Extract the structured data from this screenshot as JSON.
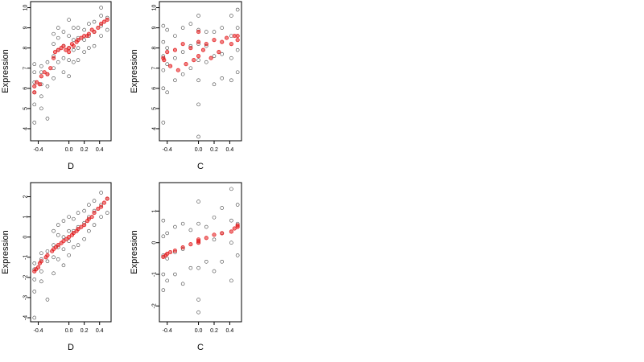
{
  "chart_data": [
    {
      "type": "scatter",
      "panel": "top-left",
      "xlabel": "D",
      "ylabel": "Expression",
      "xticks": [
        -0.4,
        0.0,
        0.2,
        0.4
      ],
      "xtick_labels": [
        "-0.4",
        "0.0",
        "0.2",
        "0.4"
      ],
      "yticks": [
        4,
        5,
        6,
        7,
        8,
        9,
        10
      ],
      "ytick_labels": [
        "4",
        "5",
        "6",
        "7",
        "8",
        "9",
        "10"
      ],
      "xlim": [
        -0.5,
        0.55
      ],
      "ylim": [
        3.4,
        10.3
      ],
      "grid": false,
      "observed": {
        "color": "#000000",
        "x": [
          -0.45,
          -0.45,
          -0.45,
          -0.45,
          -0.45,
          -0.45,
          -0.36,
          -0.36,
          -0.36,
          -0.36,
          -0.36,
          -0.28,
          -0.28,
          -0.28,
          -0.28,
          -0.2,
          -0.2,
          -0.2,
          -0.2,
          -0.2,
          -0.14,
          -0.14,
          -0.14,
          -0.14,
          -0.07,
          -0.07,
          -0.07,
          -0.07,
          0.0,
          0.0,
          0.0,
          0.0,
          0.0,
          0.06,
          0.06,
          0.06,
          0.06,
          0.12,
          0.12,
          0.12,
          0.12,
          0.2,
          0.2,
          0.2,
          0.26,
          0.26,
          0.26,
          0.33,
          0.33,
          0.33,
          0.42,
          0.42,
          0.42,
          0.42,
          0.5,
          0.5
        ],
        "y": [
          5.2,
          5.8,
          6.3,
          6.8,
          7.2,
          4.3,
          5.6,
          6.2,
          6.8,
          7.1,
          5.0,
          6.1,
          6.7,
          7.3,
          4.5,
          7.0,
          7.6,
          8.2,
          8.7,
          6.5,
          7.3,
          7.9,
          8.5,
          9.0,
          6.8,
          7.5,
          8.1,
          8.8,
          6.6,
          7.4,
          8.0,
          8.6,
          9.4,
          7.3,
          7.9,
          8.4,
          9.0,
          7.4,
          8.0,
          8.5,
          9.0,
          7.8,
          8.4,
          8.9,
          8.0,
          8.6,
          9.2,
          8.1,
          8.8,
          9.3,
          8.6,
          9.1,
          9.6,
          10.0,
          8.9,
          9.5
        ]
      },
      "fitted": {
        "color": "#e41a1c",
        "x": [
          -0.45,
          -0.45,
          -0.42,
          -0.38,
          -0.36,
          -0.32,
          -0.28,
          -0.24,
          -0.2,
          -0.18,
          -0.14,
          -0.1,
          -0.07,
          -0.04,
          0.0,
          0.0,
          0.04,
          0.06,
          0.1,
          0.12,
          0.16,
          0.2,
          0.24,
          0.26,
          0.3,
          0.33,
          0.38,
          0.42,
          0.46,
          0.5
        ],
        "y": [
          5.8,
          6.1,
          6.3,
          6.2,
          6.6,
          6.8,
          6.7,
          7.0,
          7.5,
          7.8,
          7.9,
          8.0,
          8.1,
          7.9,
          8.0,
          7.8,
          8.2,
          8.1,
          8.3,
          8.4,
          8.5,
          8.6,
          8.6,
          8.7,
          8.9,
          8.8,
          9.0,
          9.2,
          9.3,
          9.4
        ]
      }
    },
    {
      "type": "scatter",
      "panel": "top-right",
      "xlabel": "C",
      "ylabel": "Expression",
      "xticks": [
        -0.4,
        0.0,
        0.2,
        0.4
      ],
      "xtick_labels": [
        "-0.4",
        "0.0",
        "0.2",
        "0.4"
      ],
      "yticks": [
        4,
        5,
        6,
        7,
        8,
        9,
        10
      ],
      "ytick_labels": [
        "4",
        "5",
        "6",
        "7",
        "8",
        "9",
        "10"
      ],
      "xlim": [
        -0.5,
        0.55
      ],
      "ylim": [
        3.4,
        10.3
      ],
      "grid": false,
      "observed": {
        "color": "#000000",
        "x": [
          -0.45,
          -0.45,
          -0.45,
          -0.45,
          -0.45,
          -0.45,
          -0.4,
          -0.4,
          -0.4,
          -0.4,
          -0.3,
          -0.3,
          -0.3,
          -0.2,
          -0.2,
          -0.2,
          -0.1,
          -0.1,
          -0.1,
          0.0,
          0.0,
          0.0,
          0.0,
          0.0,
          0.0,
          0.0,
          0.1,
          0.1,
          0.1,
          0.2,
          0.2,
          0.2,
          0.3,
          0.3,
          0.3,
          0.42,
          0.42,
          0.42,
          0.42,
          0.5,
          0.5,
          0.5,
          0.5
        ],
        "y": [
          4.3,
          6.0,
          6.9,
          7.6,
          8.3,
          9.1,
          5.8,
          7.2,
          8.0,
          8.9,
          6.4,
          7.5,
          8.6,
          6.7,
          7.8,
          9.0,
          7.0,
          8.1,
          9.2,
          3.6,
          5.2,
          6.4,
          7.4,
          8.2,
          8.9,
          9.6,
          7.3,
          8.1,
          8.8,
          6.2,
          7.6,
          8.8,
          6.5,
          7.7,
          9.0,
          6.4,
          7.5,
          8.6,
          9.6,
          6.8,
          7.9,
          9.0,
          9.9
        ]
      },
      "fitted": {
        "color": "#e41a1c",
        "x": [
          -0.45,
          -0.44,
          -0.4,
          -0.36,
          -0.3,
          -0.26,
          -0.2,
          -0.16,
          -0.1,
          -0.06,
          0.0,
          0.0,
          0.0,
          0.06,
          0.1,
          0.16,
          0.2,
          0.26,
          0.3,
          0.36,
          0.42,
          0.46,
          0.5,
          0.5
        ],
        "y": [
          7.5,
          7.4,
          7.8,
          7.1,
          7.9,
          6.9,
          8.2,
          7.2,
          8.0,
          7.4,
          8.3,
          7.6,
          8.8,
          7.9,
          8.2,
          7.5,
          8.4,
          7.8,
          8.3,
          8.5,
          8.2,
          8.6,
          8.4,
          8.6
        ]
      }
    },
    {
      "type": "scatter",
      "panel": "bottom-left",
      "xlabel": "D",
      "ylabel": "Expression",
      "xticks": [
        -0.4,
        0.0,
        0.2,
        0.4
      ],
      "xtick_labels": [
        "-0.4",
        "0.0",
        "0.2",
        "0.4"
      ],
      "yticks": [
        -4,
        -3,
        -2,
        -1,
        0,
        1,
        2
      ],
      "ytick_labels": [
        "-4",
        "-3",
        "-2",
        "-1",
        "0",
        "1",
        "2"
      ],
      "xlim": [
        -0.5,
        0.55
      ],
      "ylim": [
        -4.2,
        2.7
      ],
      "grid": false,
      "observed": {
        "color": "#000000",
        "x": [
          -0.45,
          -0.45,
          -0.45,
          -0.45,
          -0.45,
          -0.36,
          -0.36,
          -0.36,
          -0.36,
          -0.28,
          -0.28,
          -0.28,
          -0.2,
          -0.2,
          -0.2,
          -0.2,
          -0.14,
          -0.14,
          -0.14,
          -0.14,
          -0.07,
          -0.07,
          -0.07,
          -0.07,
          0.0,
          0.0,
          0.0,
          0.0,
          0.06,
          0.06,
          0.06,
          0.12,
          0.12,
          0.12,
          0.2,
          0.2,
          0.2,
          0.26,
          0.26,
          0.26,
          0.33,
          0.33,
          0.33,
          0.42,
          0.42,
          0.42,
          0.5,
          0.5
        ],
        "y": [
          -4.0,
          -2.7,
          -2.1,
          -1.6,
          -1.3,
          -2.2,
          -1.7,
          -1.1,
          -0.8,
          -3.1,
          -1.2,
          -0.7,
          -1.8,
          -1.0,
          -0.4,
          0.3,
          -1.1,
          -0.5,
          0.1,
          0.6,
          -1.4,
          -0.6,
          0.0,
          0.8,
          -0.9,
          -0.2,
          0.3,
          1.0,
          -0.5,
          0.3,
          0.9,
          -0.4,
          0.5,
          1.2,
          -0.1,
          0.7,
          1.3,
          0.3,
          1.0,
          1.6,
          0.6,
          1.3,
          1.8,
          1.0,
          1.6,
          2.2,
          1.2,
          1.9
        ]
      },
      "fitted": {
        "color": "#e41a1c",
        "x": [
          -0.45,
          -0.43,
          -0.4,
          -0.38,
          -0.36,
          -0.3,
          -0.28,
          -0.22,
          -0.2,
          -0.17,
          -0.14,
          -0.1,
          -0.07,
          -0.03,
          0.0,
          0.04,
          0.06,
          0.1,
          0.12,
          0.16,
          0.2,
          0.24,
          0.26,
          0.3,
          0.33,
          0.38,
          0.42,
          0.46,
          0.5
        ],
        "y": [
          -1.7,
          -1.6,
          -1.5,
          -1.3,
          -1.2,
          -1.0,
          -0.9,
          -0.7,
          -0.6,
          -0.5,
          -0.4,
          -0.3,
          -0.2,
          -0.1,
          0.0,
          0.1,
          0.2,
          0.3,
          0.4,
          0.5,
          0.6,
          0.8,
          0.9,
          1.0,
          1.2,
          1.4,
          1.5,
          1.7,
          1.9
        ]
      }
    },
    {
      "type": "scatter",
      "panel": "bottom-right",
      "xlabel": "C",
      "ylabel": "Expression",
      "xticks": [
        -0.4,
        0.0,
        0.2,
        0.4
      ],
      "xtick_labels": [
        "-0.4",
        "0.0",
        "0.2",
        "0.4"
      ],
      "yticks": [
        -2,
        -1,
        0,
        1
      ],
      "ytick_labels": [
        "-2",
        "-1",
        "0",
        "1"
      ],
      "xlim": [
        -0.5,
        0.55
      ],
      "ylim": [
        -2.5,
        1.9
      ],
      "grid": false,
      "observed": {
        "color": "#000000",
        "x": [
          -0.45,
          -0.45,
          -0.45,
          -0.45,
          -0.45,
          -0.4,
          -0.4,
          -0.4,
          -0.3,
          -0.3,
          -0.3,
          -0.2,
          -0.2,
          -0.2,
          -0.1,
          -0.1,
          0.0,
          0.0,
          0.0,
          0.0,
          0.0,
          0.0,
          0.1,
          0.1,
          0.2,
          0.2,
          0.2,
          0.3,
          0.3,
          0.3,
          0.42,
          0.42,
          0.42,
          0.42,
          0.5,
          0.5,
          0.5
        ],
        "y": [
          -1.5,
          -1.0,
          -0.4,
          0.2,
          0.7,
          -1.2,
          -0.5,
          0.3,
          -1.0,
          -0.3,
          0.5,
          -1.3,
          -0.2,
          0.6,
          -0.8,
          0.4,
          -2.2,
          -1.8,
          -0.8,
          0.0,
          0.6,
          1.3,
          -0.6,
          0.5,
          -0.9,
          0.1,
          0.8,
          -0.6,
          0.3,
          1.1,
          -1.2,
          0.0,
          0.7,
          1.7,
          -0.4,
          0.6,
          1.2
        ]
      },
      "fitted": {
        "color": "#e41a1c",
        "x": [
          -0.45,
          -0.42,
          -0.4,
          -0.36,
          -0.3,
          -0.2,
          -0.1,
          0.0,
          0.0,
          0.0,
          0.1,
          0.2,
          0.3,
          0.42,
          0.46,
          0.5,
          0.5
        ],
        "y": [
          -0.45,
          -0.4,
          -0.35,
          -0.3,
          -0.25,
          -0.15,
          -0.05,
          0.0,
          0.1,
          0.05,
          0.15,
          0.25,
          0.3,
          0.35,
          0.45,
          0.5,
          0.55
        ]
      }
    }
  ]
}
